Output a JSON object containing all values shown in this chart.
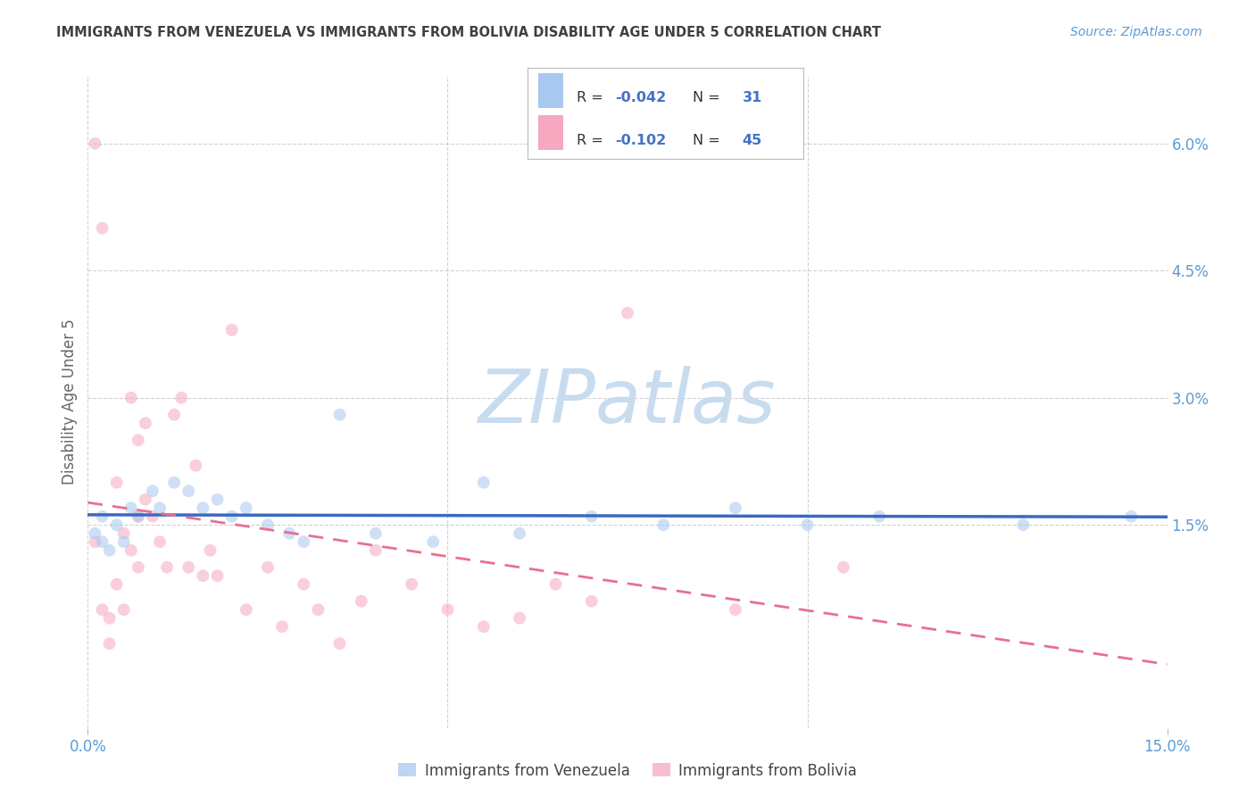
{
  "title": "IMMIGRANTS FROM VENEZUELA VS IMMIGRANTS FROM BOLIVIA DISABILITY AGE UNDER 5 CORRELATION CHART",
  "source": "Source: ZipAtlas.com",
  "ylabel": "Disability Age Under 5",
  "xmin": 0.0,
  "xmax": 0.15,
  "ymin": -0.009,
  "ymax": 0.068,
  "watermark": "ZIPatlas",
  "color_venezuela": "#a8c8f0",
  "color_bolivia": "#f5a8c0",
  "color_trend_venezuela": "#3a6abf",
  "color_trend_bolivia": "#e87090",
  "color_axis_text": "#5b9bd5",
  "color_title": "#404040",
  "color_grid": "#cccccc",
  "color_watermark": "#c8dcf0",
  "color_ylabel": "#666666",
  "color_legend_text_label": "#333333",
  "color_legend_text_value": "#4472c4",
  "background": "#ffffff",
  "marker_size": 100,
  "marker_alpha": 0.55,
  "ytick_vals": [
    0.015,
    0.03,
    0.045,
    0.06
  ],
  "ytick_labels": [
    "1.5%",
    "3.0%",
    "4.5%",
    "6.0%"
  ],
  "xtick_vals": [
    0.0,
    0.15
  ],
  "xtick_labels": [
    "0.0%",
    "15.0%"
  ],
  "ven_x": [
    0.001,
    0.002,
    0.002,
    0.003,
    0.004,
    0.005,
    0.006,
    0.007,
    0.009,
    0.01,
    0.012,
    0.014,
    0.016,
    0.018,
    0.02,
    0.022,
    0.025,
    0.028,
    0.03,
    0.035,
    0.04,
    0.048,
    0.055,
    0.06,
    0.07,
    0.08,
    0.09,
    0.1,
    0.11,
    0.13,
    0.145
  ],
  "ven_y": [
    0.014,
    0.016,
    0.013,
    0.012,
    0.015,
    0.013,
    0.017,
    0.016,
    0.019,
    0.017,
    0.02,
    0.019,
    0.017,
    0.018,
    0.016,
    0.017,
    0.015,
    0.014,
    0.013,
    0.028,
    0.014,
    0.013,
    0.02,
    0.014,
    0.016,
    0.015,
    0.017,
    0.015,
    0.016,
    0.015,
    0.016
  ],
  "bol_x": [
    0.001,
    0.001,
    0.002,
    0.002,
    0.003,
    0.003,
    0.004,
    0.004,
    0.005,
    0.005,
    0.006,
    0.006,
    0.007,
    0.007,
    0.007,
    0.008,
    0.008,
    0.009,
    0.01,
    0.011,
    0.012,
    0.013,
    0.014,
    0.015,
    0.016,
    0.017,
    0.018,
    0.02,
    0.022,
    0.025,
    0.027,
    0.03,
    0.032,
    0.035,
    0.038,
    0.04,
    0.045,
    0.05,
    0.055,
    0.06,
    0.065,
    0.07,
    0.075,
    0.09,
    0.105
  ],
  "bol_y": [
    0.06,
    0.013,
    0.05,
    0.005,
    0.001,
    0.004,
    0.008,
    0.02,
    0.014,
    0.005,
    0.03,
    0.012,
    0.025,
    0.01,
    0.016,
    0.027,
    0.018,
    0.016,
    0.013,
    0.01,
    0.028,
    0.03,
    0.01,
    0.022,
    0.009,
    0.012,
    0.009,
    0.038,
    0.005,
    0.01,
    0.003,
    0.008,
    0.005,
    0.001,
    0.006,
    0.012,
    0.008,
    0.005,
    0.003,
    0.004,
    0.008,
    0.006,
    0.04,
    0.005,
    0.01
  ],
  "legend_r1": "R = ",
  "legend_rv1": "-0.042",
  "legend_n1": "N = ",
  "legend_nv1": "31",
  "legend_r2": "R = ",
  "legend_rv2": "-0.102",
  "legend_n2": "N = ",
  "legend_nv2": "45",
  "bottom_label1": "Immigrants from Venezuela",
  "bottom_label2": "Immigrants from Bolivia"
}
